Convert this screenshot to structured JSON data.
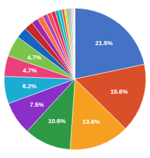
{
  "chart_data": {
    "type": "pie",
    "values": [
      21.5,
      15.6,
      13.6,
      10.6,
      7.5,
      6.2,
      4.7,
      4.7,
      2.5,
      2.0,
      1.5,
      1.3,
      1.1,
      1.0,
      0.9,
      0.8,
      0.7,
      0.6,
      0.5,
      0.4,
      0.35,
      0.3,
      0.25,
      0.2,
      0.15,
      0.1,
      0.08,
      0.07
    ],
    "colors": [
      "#4472C4",
      "#D94F2A",
      "#F5A020",
      "#2E9944",
      "#8B2FC9",
      "#1BACD4",
      "#EC407A",
      "#7BC34A",
      "#1565C0",
      "#C62828",
      "#9C27B0",
      "#FF7043",
      "#AB47BC",
      "#EF5350",
      "#E91E63",
      "#26A69A",
      "#00BCD4",
      "#FF5722",
      "#CDDC39",
      "#9E9D24",
      "#26C6DA",
      "#F06292",
      "#AED581",
      "#CE93D8",
      "#80CBC4",
      "#4CAF50",
      "#FFCCBC",
      "#F8BBD0"
    ],
    "data_labels": true,
    "value_labels": [
      "21.5%",
      "15.6%",
      "13.6%",
      "10.6%",
      "7.5%",
      "6.2%",
      "4.7%",
      "4.7%",
      null,
      null,
      null,
      null,
      null,
      null,
      null,
      null,
      null,
      null,
      null,
      null,
      null,
      null,
      null,
      null,
      null,
      null,
      null,
      null
    ]
  }
}
